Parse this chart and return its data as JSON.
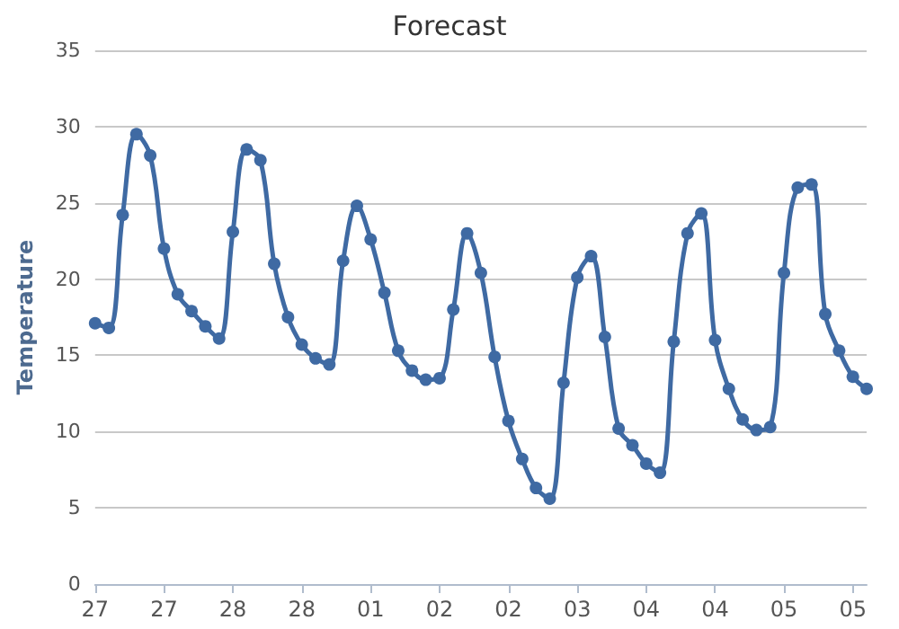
{
  "chart_data": {
    "type": "line",
    "title": "Forecast",
    "ylabel": "Temperature",
    "categories": [
      "27",
      null,
      null,
      null,
      null,
      "27",
      null,
      null,
      null,
      null,
      "28",
      null,
      null,
      null,
      null,
      "28",
      null,
      null,
      null,
      null,
      "01",
      null,
      null,
      null,
      null,
      "02",
      null,
      null,
      null,
      null,
      "02",
      null,
      null,
      null,
      null,
      "03",
      null,
      null,
      null,
      null,
      "04",
      null,
      null,
      null,
      null,
      "04",
      null,
      null,
      null,
      null,
      "05",
      null,
      null,
      null,
      null,
      "05",
      null
    ],
    "series": [
      {
        "color": "#3f6aa3",
        "values": [
          17.1,
          16.8,
          24.2,
          29.5,
          28.1,
          22,
          19,
          17.9,
          16.9,
          16.1,
          23.1,
          28.5,
          27.8,
          21,
          17.5,
          15.7,
          14.8,
          14.4,
          21.2,
          24.8,
          22.6,
          19.1,
          15.3,
          14,
          13.4,
          13.5,
          18,
          23,
          20.4,
          14.9,
          10.7,
          8.2,
          6.3,
          5.6,
          13.2,
          20.1,
          21.5,
          16.2,
          10.2,
          9.1,
          7.9,
          7.3,
          15.9,
          23,
          24.3,
          16,
          12.8,
          10.8,
          10.1,
          10.3,
          20.4,
          26,
          26.2,
          17.7,
          15.3,
          13.6,
          12.8
        ]
      }
    ],
    "ylim": [
      0,
      35
    ],
    "yticks": [
      0,
      5,
      10,
      15,
      20,
      25,
      30,
      35
    ],
    "grid": "y",
    "marker": "circle",
    "line_style": "solid"
  }
}
